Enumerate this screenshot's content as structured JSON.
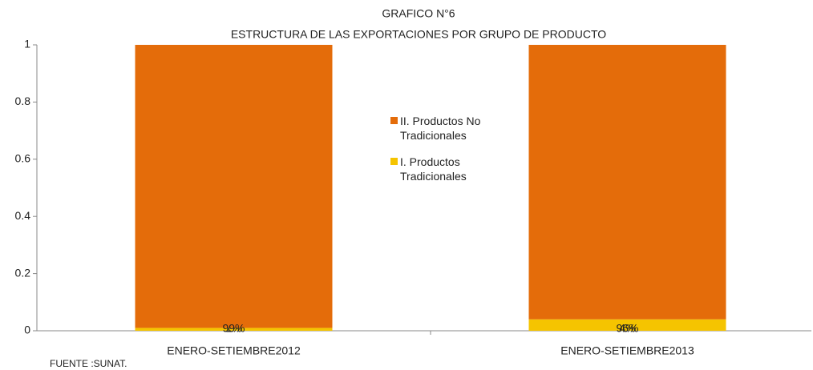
{
  "chart_data": {
    "type": "stacked_bar",
    "title": [
      "GRAFICO N°6",
      "ESTRUCTURA DE LAS EXPORTACIONES POR GRUPO DE PRODUCTO"
    ],
    "categories": [
      "ENERO-SETIEMBRE2012",
      "ENERO-SETIEMBRE2013"
    ],
    "series": [
      {
        "name": "I. Productos Tradicionales",
        "color": "#f5c400",
        "values": [
          0.01,
          0.04
        ],
        "value_labels": [
          "1%",
          "4%"
        ]
      },
      {
        "name": "II. Productos No Tradicionales",
        "color": "#e46c0a",
        "values": [
          0.99,
          0.96
        ],
        "value_labels": [
          "99%",
          "96%"
        ]
      }
    ],
    "ylim": [
      0,
      1
    ],
    "yticks": [
      0,
      0.2,
      0.4,
      0.6,
      0.8,
      1
    ],
    "legend": "center",
    "grid": false,
    "note": "FUENTE :SUNAT."
  }
}
